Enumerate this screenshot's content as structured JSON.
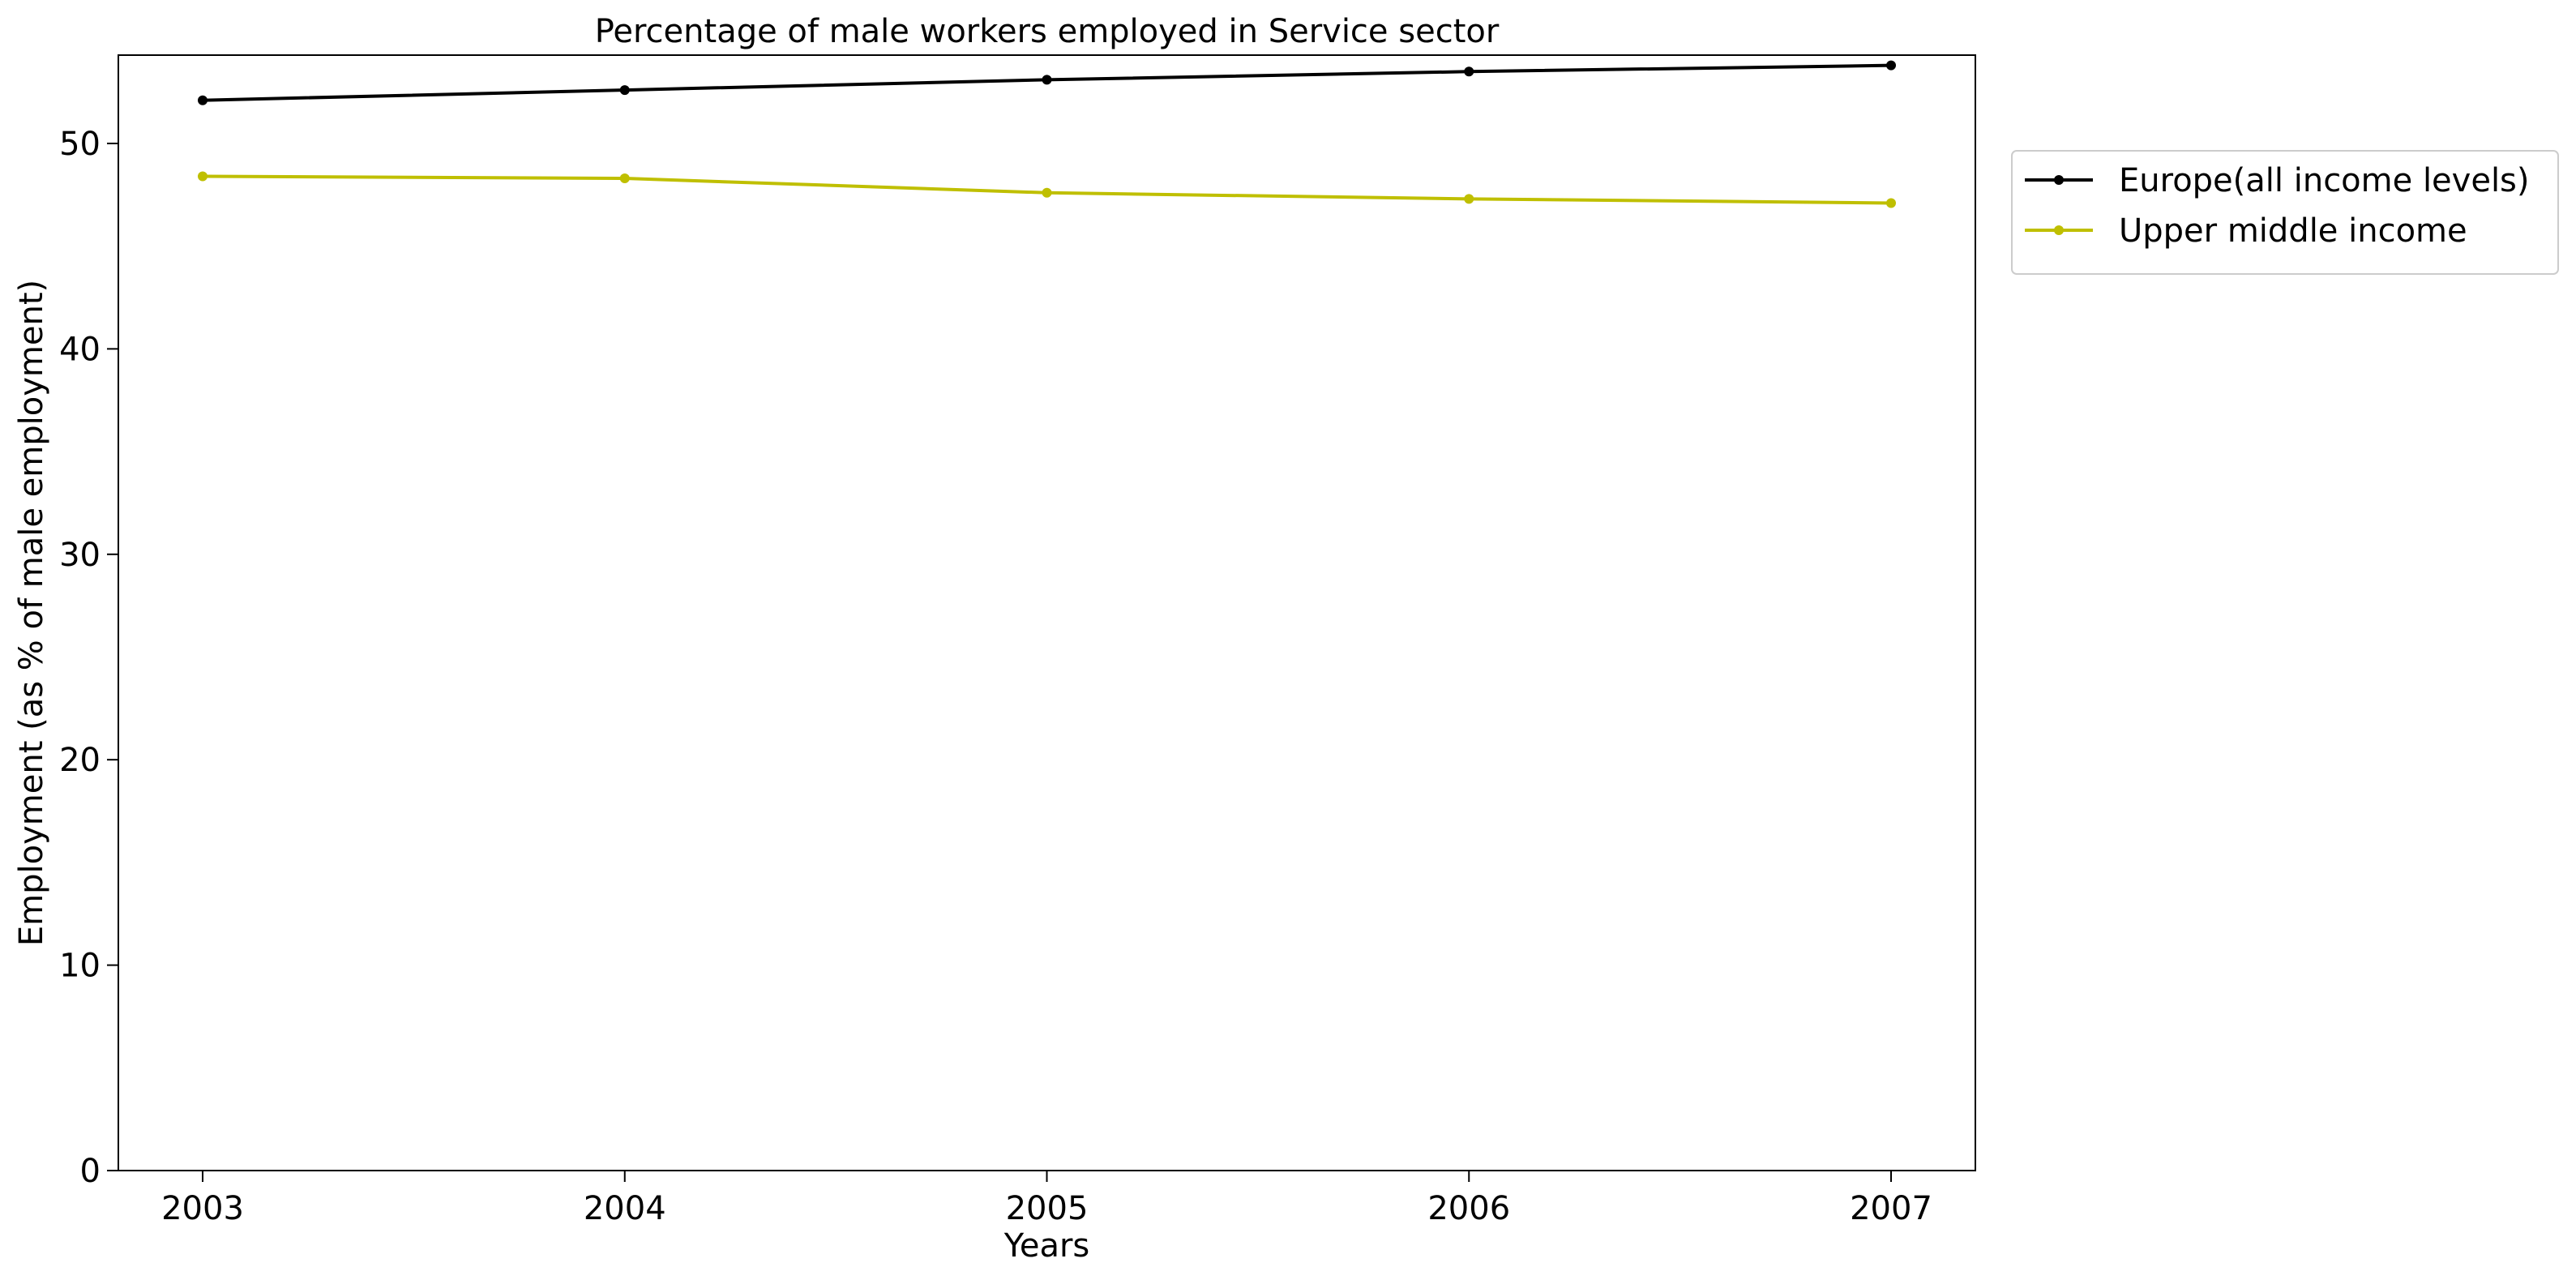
{
  "chart_data": {
    "type": "line",
    "title": "Percentage of male workers employed in Service sector",
    "xlabel": "Years",
    "ylabel": "Employment (as % of male employment)",
    "x": [
      "2003",
      "2004",
      "2005",
      "2006",
      "2007"
    ],
    "ylim": [
      0,
      54.3
    ],
    "yticks": [
      0,
      10,
      20,
      30,
      40,
      50
    ],
    "grid": false,
    "legend_position": "right, outside the plot area, top",
    "series": [
      {
        "name": "Europe(all income levels)",
        "color": "#000000",
        "marker": "dot",
        "values": [
          52.1,
          52.6,
          53.1,
          53.5,
          53.8
        ]
      },
      {
        "name": "Upper middle income",
        "color": "#bfbf00",
        "marker": "dot",
        "values": [
          48.4,
          48.3,
          47.6,
          47.3,
          47.1
        ]
      }
    ]
  }
}
